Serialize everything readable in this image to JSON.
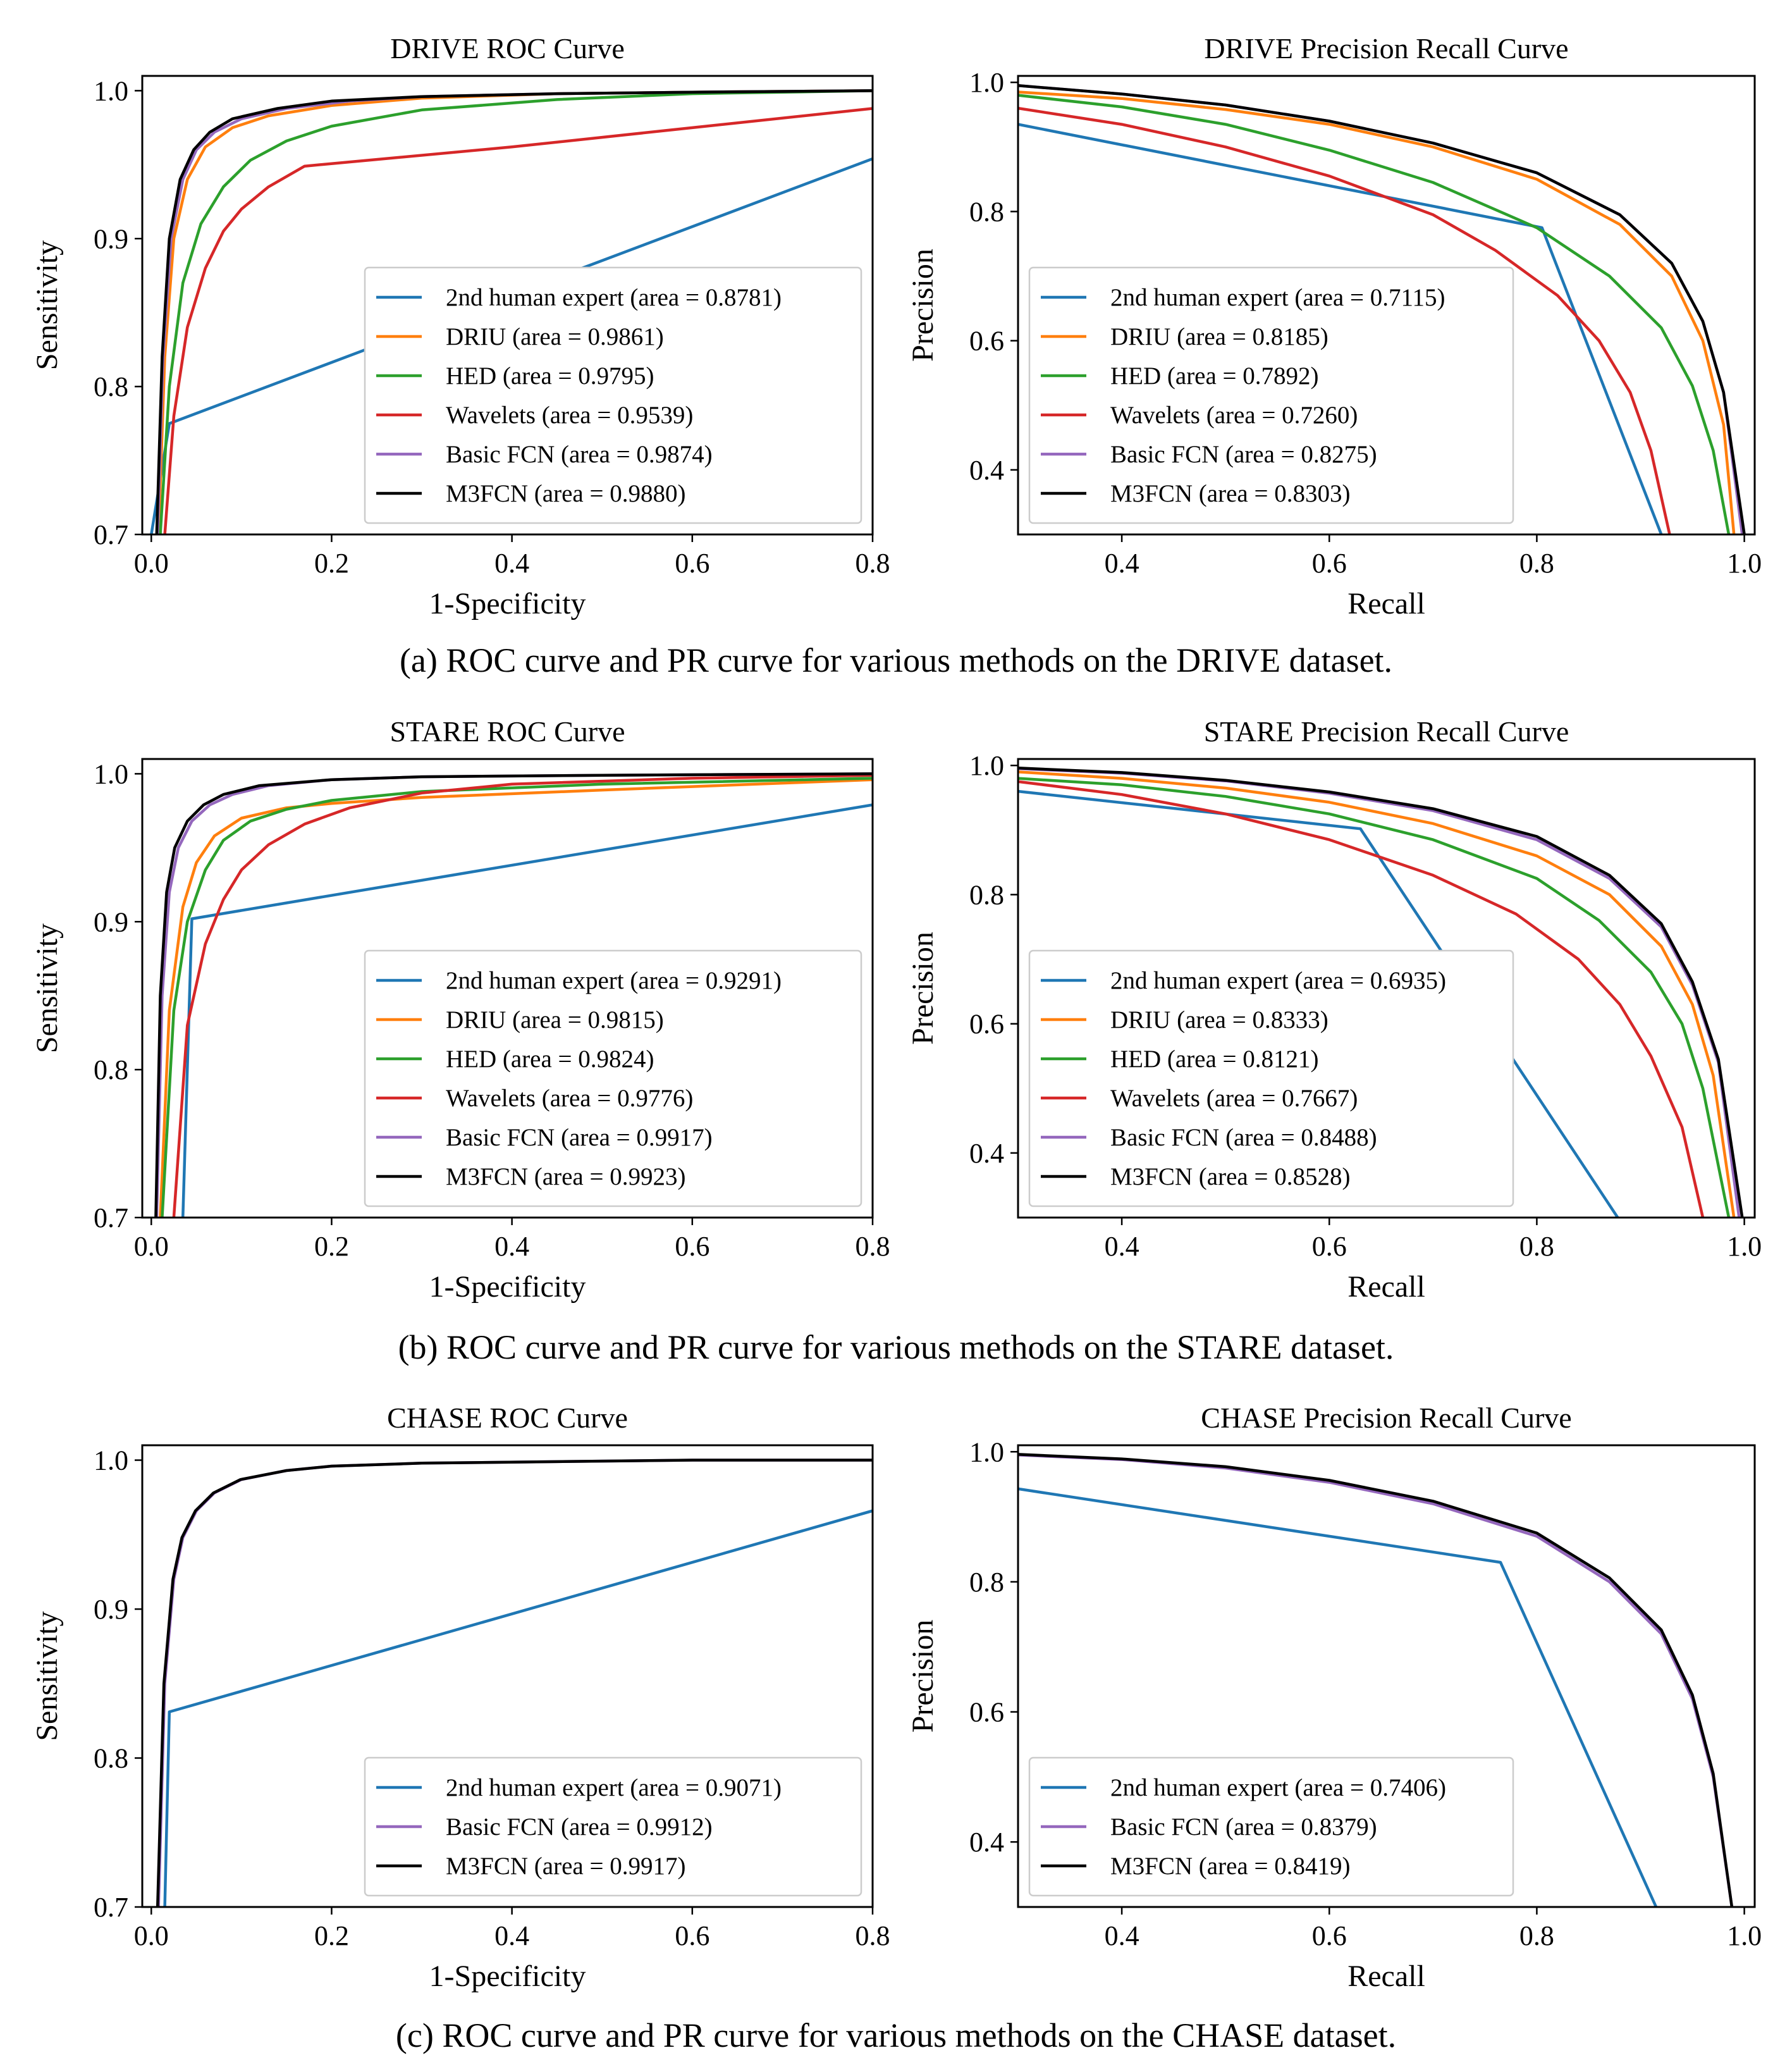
{
  "figure": {
    "captions": [
      "(a) ROC curve and PR curve for various methods on the DRIVE dataset.",
      "(b) ROC curve and PR curve for various methods on the STARE dataset.",
      "(c) ROC curve and PR curve for various methods on the CHASE dataset."
    ]
  },
  "colors": {
    "2nd human expert": "#1f77b4",
    "DRIU": "#ff7f0e",
    "HED": "#2ca02c",
    "Wavelets": "#d62728",
    "Basic FCN": "#9467bd",
    "M3FCN": "#000000"
  },
  "chart_data": [
    {
      "type": "line",
      "title": "DRIVE ROC Curve",
      "xlabel": "1-Specificity",
      "ylabel": "Sensitivity",
      "xlim": [
        -0.01,
        0.8
      ],
      "ylim": [
        0.7,
        1.01
      ],
      "xticks": [
        0.0,
        0.2,
        0.4,
        0.6,
        0.8
      ],
      "xtick_labels": [
        "0.0",
        "0.2",
        "0.4",
        "0.6",
        "0.8"
      ],
      "yticks": [
        0.7,
        0.8,
        0.9,
        1.0
      ],
      "ytick_labels": [
        "0.7",
        "0.8",
        "0.9",
        "1.0"
      ],
      "legend_position": "lower-right",
      "series": [
        {
          "name": "2nd human expert",
          "label": "2nd human expert (area = 0.8781)",
          "x": [
            0.0,
            0.02,
            0.8
          ],
          "y": [
            0.7,
            0.775,
            0.954
          ]
        },
        {
          "name": "DRIU",
          "label": "DRIU (area = 0.9861)",
          "x": [
            0.008,
            0.015,
            0.025,
            0.04,
            0.06,
            0.09,
            0.13,
            0.2,
            0.3,
            0.45,
            0.6,
            0.8
          ],
          "y": [
            0.7,
            0.82,
            0.9,
            0.94,
            0.962,
            0.975,
            0.983,
            0.99,
            0.995,
            0.998,
            0.999,
            1.0
          ]
        },
        {
          "name": "HED",
          "label": "HED (area = 0.9795)",
          "x": [
            0.01,
            0.02,
            0.035,
            0.055,
            0.08,
            0.11,
            0.15,
            0.2,
            0.3,
            0.45,
            0.6,
            0.8
          ],
          "y": [
            0.7,
            0.8,
            0.87,
            0.91,
            0.935,
            0.953,
            0.966,
            0.976,
            0.987,
            0.994,
            0.998,
            1.0
          ]
        },
        {
          "name": "Wavelets",
          "label": "Wavelets (area = 0.9539)",
          "x": [
            0.015,
            0.025,
            0.04,
            0.06,
            0.08,
            0.1,
            0.13,
            0.17,
            0.4,
            0.6,
            0.8
          ],
          "y": [
            0.7,
            0.78,
            0.84,
            0.88,
            0.905,
            0.92,
            0.935,
            0.949,
            0.962,
            0.975,
            0.988
          ]
        },
        {
          "name": "Basic FCN",
          "label": "Basic FCN (area = 0.9874)",
          "x": [
            0.007,
            0.013,
            0.022,
            0.035,
            0.05,
            0.07,
            0.1,
            0.15,
            0.22,
            0.3,
            0.45,
            0.6,
            0.8
          ],
          "y": [
            0.7,
            0.82,
            0.9,
            0.94,
            0.96,
            0.972,
            0.981,
            0.988,
            0.993,
            0.996,
            0.998,
            0.999,
            1.0
          ]
        },
        {
          "name": "M3FCN",
          "label": "M3FCN (area = 0.9880)",
          "x": [
            0.006,
            0.012,
            0.02,
            0.032,
            0.047,
            0.065,
            0.09,
            0.14,
            0.2,
            0.3,
            0.45,
            0.6,
            0.8
          ],
          "y": [
            0.7,
            0.82,
            0.9,
            0.94,
            0.96,
            0.972,
            0.981,
            0.988,
            0.993,
            0.996,
            0.998,
            0.999,
            1.0
          ]
        }
      ]
    },
    {
      "type": "line",
      "title": "DRIVE Precision Recall Curve",
      "xlabel": "Recall",
      "ylabel": "Precision",
      "xlim": [
        0.3,
        1.01
      ],
      "ylim": [
        0.3,
        1.01
      ],
      "xticks": [
        0.4,
        0.6,
        0.8,
        1.0
      ],
      "xtick_labels": [
        "0.4",
        "0.6",
        "0.8",
        "1.0"
      ],
      "yticks": [
        0.4,
        0.6,
        0.8,
        1.0
      ],
      "ytick_labels": [
        "0.4",
        "0.6",
        "0.8",
        "1.0"
      ],
      "legend_position": "lower-left",
      "series": [
        {
          "name": "2nd human expert",
          "label": "2nd human expert (area = 0.7115)",
          "x": [
            0.3,
            0.805,
            0.92
          ],
          "y": [
            0.935,
            0.775,
            0.3
          ]
        },
        {
          "name": "DRIU",
          "label": "DRIU (area = 0.8185)",
          "x": [
            0.3,
            0.4,
            0.5,
            0.6,
            0.7,
            0.8,
            0.88,
            0.93,
            0.96,
            0.98,
            0.99
          ],
          "y": [
            0.985,
            0.975,
            0.958,
            0.935,
            0.9,
            0.85,
            0.78,
            0.7,
            0.6,
            0.47,
            0.3
          ]
        },
        {
          "name": "HED",
          "label": "HED (area = 0.7892)",
          "x": [
            0.3,
            0.4,
            0.5,
            0.6,
            0.7,
            0.8,
            0.87,
            0.92,
            0.95,
            0.97,
            0.985
          ],
          "y": [
            0.98,
            0.962,
            0.935,
            0.895,
            0.845,
            0.775,
            0.7,
            0.62,
            0.53,
            0.43,
            0.3
          ]
        },
        {
          "name": "Wavelets",
          "label": "Wavelets (area = 0.7260)",
          "x": [
            0.3,
            0.4,
            0.5,
            0.6,
            0.7,
            0.76,
            0.82,
            0.86,
            0.89,
            0.91,
            0.928
          ],
          "y": [
            0.96,
            0.935,
            0.9,
            0.855,
            0.795,
            0.74,
            0.67,
            0.6,
            0.52,
            0.43,
            0.3
          ]
        },
        {
          "name": "Basic FCN",
          "label": "Basic FCN (area = 0.8275)",
          "x": [
            0.3,
            0.4,
            0.5,
            0.6,
            0.7,
            0.8,
            0.88,
            0.93,
            0.96,
            0.98,
            0.998
          ],
          "y": [
            0.995,
            0.982,
            0.965,
            0.94,
            0.906,
            0.86,
            0.795,
            0.72,
            0.63,
            0.52,
            0.3
          ]
        },
        {
          "name": "M3FCN",
          "label": "M3FCN (area = 0.8303)",
          "x": [
            0.3,
            0.4,
            0.5,
            0.6,
            0.7,
            0.8,
            0.88,
            0.93,
            0.96,
            0.98,
            1.0
          ],
          "y": [
            0.995,
            0.982,
            0.965,
            0.94,
            0.906,
            0.86,
            0.795,
            0.72,
            0.63,
            0.52,
            0.3
          ]
        }
      ]
    },
    {
      "type": "line",
      "title": "STARE ROC Curve",
      "xlabel": "1-Specificity",
      "ylabel": "Sensitivity",
      "xlim": [
        -0.01,
        0.8
      ],
      "ylim": [
        0.7,
        1.01
      ],
      "xticks": [
        0.0,
        0.2,
        0.4,
        0.6,
        0.8
      ],
      "xtick_labels": [
        "0.0",
        "0.2",
        "0.4",
        "0.6",
        "0.8"
      ],
      "yticks": [
        0.7,
        0.8,
        0.9,
        1.0
      ],
      "ytick_labels": [
        "0.7",
        "0.8",
        "0.9",
        "1.0"
      ],
      "legend_position": "lower-right",
      "series": [
        {
          "name": "2nd human expert",
          "label": "2nd human expert (area = 0.9291)",
          "x": [
            0.035,
            0.045,
            0.8
          ],
          "y": [
            0.7,
            0.902,
            0.979
          ]
        },
        {
          "name": "DRIU",
          "label": "DRIU (area = 0.9815)",
          "x": [
            0.01,
            0.02,
            0.035,
            0.05,
            0.07,
            0.1,
            0.15,
            0.2,
            0.3,
            0.5,
            0.8
          ],
          "y": [
            0.7,
            0.84,
            0.91,
            0.94,
            0.958,
            0.97,
            0.977,
            0.98,
            0.984,
            0.989,
            0.996
          ]
        },
        {
          "name": "HED",
          "label": "HED (area = 0.9824)",
          "x": [
            0.012,
            0.025,
            0.04,
            0.06,
            0.08,
            0.11,
            0.15,
            0.2,
            0.3,
            0.5,
            0.8
          ],
          "y": [
            0.7,
            0.84,
            0.9,
            0.935,
            0.955,
            0.968,
            0.976,
            0.982,
            0.988,
            0.993,
            0.997
          ]
        },
        {
          "name": "Wavelets",
          "label": "Wavelets (area = 0.9776)",
          "x": [
            0.025,
            0.04,
            0.06,
            0.08,
            0.1,
            0.13,
            0.17,
            0.22,
            0.3,
            0.4,
            0.6,
            0.8
          ],
          "y": [
            0.7,
            0.83,
            0.885,
            0.915,
            0.935,
            0.952,
            0.966,
            0.977,
            0.987,
            0.993,
            0.997,
            0.999
          ]
        },
        {
          "name": "Basic FCN",
          "label": "Basic FCN (area = 0.9917)",
          "x": [
            0.006,
            0.012,
            0.02,
            0.03,
            0.045,
            0.065,
            0.09,
            0.13,
            0.2,
            0.3,
            0.5,
            0.8
          ],
          "y": [
            0.7,
            0.85,
            0.92,
            0.95,
            0.968,
            0.979,
            0.986,
            0.992,
            0.996,
            0.998,
            0.999,
            1.0
          ]
        },
        {
          "name": "M3FCN",
          "label": "M3FCN (area = 0.9923)",
          "x": [
            0.005,
            0.01,
            0.017,
            0.026,
            0.04,
            0.058,
            0.08,
            0.12,
            0.2,
            0.3,
            0.5,
            0.8
          ],
          "y": [
            0.7,
            0.85,
            0.92,
            0.95,
            0.968,
            0.979,
            0.986,
            0.992,
            0.996,
            0.998,
            0.999,
            1.0
          ]
        }
      ]
    },
    {
      "type": "line",
      "title": "STARE Precision Recall Curve",
      "xlabel": "Recall",
      "ylabel": "Precision",
      "xlim": [
        0.3,
        1.01
      ],
      "ylim": [
        0.3,
        1.01
      ],
      "xticks": [
        0.4,
        0.6,
        0.8,
        1.0
      ],
      "xtick_labels": [
        "0.4",
        "0.6",
        "0.8",
        "1.0"
      ],
      "yticks": [
        0.4,
        0.6,
        0.8,
        1.0
      ],
      "ytick_labels": [
        "0.4",
        "0.6",
        "0.8",
        "1.0"
      ],
      "legend_position": "lower-left",
      "series": [
        {
          "name": "2nd human expert",
          "label": "2nd human expert (area = 0.6935)",
          "x": [
            0.3,
            0.63,
            0.878
          ],
          "y": [
            0.96,
            0.902,
            0.3
          ]
        },
        {
          "name": "DRIU",
          "label": "DRIU (area = 0.8333)",
          "x": [
            0.3,
            0.4,
            0.5,
            0.6,
            0.7,
            0.8,
            0.87,
            0.92,
            0.95,
            0.97,
            0.99
          ],
          "y": [
            0.99,
            0.98,
            0.965,
            0.943,
            0.91,
            0.86,
            0.8,
            0.72,
            0.63,
            0.52,
            0.3
          ]
        },
        {
          "name": "HED",
          "label": "HED (area = 0.8121)",
          "x": [
            0.3,
            0.4,
            0.5,
            0.6,
            0.7,
            0.8,
            0.86,
            0.91,
            0.94,
            0.96,
            0.985
          ],
          "y": [
            0.98,
            0.97,
            0.952,
            0.925,
            0.885,
            0.825,
            0.76,
            0.68,
            0.6,
            0.5,
            0.3
          ]
        },
        {
          "name": "Wavelets",
          "label": "Wavelets (area = 0.7667)",
          "x": [
            0.3,
            0.4,
            0.5,
            0.6,
            0.7,
            0.78,
            0.84,
            0.88,
            0.91,
            0.94,
            0.96
          ],
          "y": [
            0.975,
            0.955,
            0.925,
            0.885,
            0.83,
            0.77,
            0.7,
            0.63,
            0.55,
            0.44,
            0.3
          ]
        },
        {
          "name": "Basic FCN",
          "label": "Basic FCN (area = 0.8488)",
          "x": [
            0.3,
            0.4,
            0.5,
            0.6,
            0.7,
            0.8,
            0.87,
            0.92,
            0.95,
            0.975,
            0.995
          ],
          "y": [
            0.995,
            0.988,
            0.976,
            0.957,
            0.93,
            0.885,
            0.825,
            0.75,
            0.66,
            0.54,
            0.3
          ]
        },
        {
          "name": "M3FCN",
          "label": "M3FCN (area = 0.8528)",
          "x": [
            0.3,
            0.4,
            0.5,
            0.6,
            0.7,
            0.8,
            0.87,
            0.92,
            0.95,
            0.975,
            0.998
          ],
          "y": [
            0.996,
            0.989,
            0.977,
            0.959,
            0.933,
            0.89,
            0.83,
            0.755,
            0.665,
            0.545,
            0.3
          ]
        }
      ]
    },
    {
      "type": "line",
      "title": "CHASE ROC Curve",
      "xlabel": "1-Specificity",
      "ylabel": "Sensitivity",
      "xlim": [
        -0.01,
        0.8
      ],
      "ylim": [
        0.7,
        1.01
      ],
      "xticks": [
        0.0,
        0.2,
        0.4,
        0.6,
        0.8
      ],
      "xtick_labels": [
        "0.0",
        "0.2",
        "0.4",
        "0.6",
        "0.8"
      ],
      "yticks": [
        0.7,
        0.8,
        0.9,
        1.0
      ],
      "ytick_labels": [
        "0.7",
        "0.8",
        "0.9",
        "1.0"
      ],
      "legend_position": "lower-right",
      "series": [
        {
          "name": "2nd human expert",
          "label": "2nd human expert (area = 0.9071)",
          "x": [
            0.015,
            0.02,
            0.8
          ],
          "y": [
            0.7,
            0.831,
            0.966
          ]
        },
        {
          "name": "Basic FCN",
          "label": "Basic FCN (area = 0.9912)",
          "x": [
            0.008,
            0.015,
            0.025,
            0.035,
            0.05,
            0.07,
            0.1,
            0.15,
            0.2,
            0.3,
            0.45,
            0.6,
            0.8
          ],
          "y": [
            0.7,
            0.85,
            0.92,
            0.948,
            0.966,
            0.978,
            0.987,
            0.993,
            0.996,
            0.998,
            0.999,
            1.0,
            1.0
          ]
        },
        {
          "name": "M3FCN",
          "label": "M3FCN (area = 0.9917)",
          "x": [
            0.007,
            0.014,
            0.024,
            0.034,
            0.049,
            0.069,
            0.099,
            0.15,
            0.2,
            0.3,
            0.45,
            0.6,
            0.8
          ],
          "y": [
            0.7,
            0.85,
            0.92,
            0.948,
            0.966,
            0.978,
            0.987,
            0.993,
            0.996,
            0.998,
            0.999,
            1.0,
            1.0
          ]
        }
      ]
    },
    {
      "type": "line",
      "title": "CHASE Precision Recall Curve",
      "xlabel": "Recall",
      "ylabel": "Precision",
      "xlim": [
        0.3,
        1.01
      ],
      "ylim": [
        0.3,
        1.01
      ],
      "xticks": [
        0.4,
        0.6,
        0.8,
        1.0
      ],
      "xtick_labels": [
        "0.4",
        "0.6",
        "0.8",
        "1.0"
      ],
      "yticks": [
        0.4,
        0.6,
        0.8,
        1.0
      ],
      "ytick_labels": [
        "0.4",
        "0.6",
        "0.8",
        "1.0"
      ],
      "legend_position": "lower-left",
      "series": [
        {
          "name": "2nd human expert",
          "label": "2nd human expert (area = 0.7406)",
          "x": [
            0.3,
            0.765,
            0.915
          ],
          "y": [
            0.943,
            0.83,
            0.3
          ]
        },
        {
          "name": "Basic FCN",
          "label": "Basic FCN (area = 0.8379)",
          "x": [
            0.3,
            0.4,
            0.5,
            0.6,
            0.7,
            0.8,
            0.87,
            0.92,
            0.95,
            0.97,
            0.988
          ],
          "y": [
            0.995,
            0.988,
            0.975,
            0.953,
            0.92,
            0.87,
            0.8,
            0.72,
            0.62,
            0.5,
            0.3
          ]
        },
        {
          "name": "M3FCN",
          "label": "M3FCN (area = 0.8419)",
          "x": [
            0.3,
            0.4,
            0.5,
            0.6,
            0.7,
            0.8,
            0.87,
            0.92,
            0.95,
            0.97,
            0.988
          ],
          "y": [
            0.996,
            0.989,
            0.977,
            0.956,
            0.924,
            0.875,
            0.806,
            0.726,
            0.626,
            0.505,
            0.3
          ]
        }
      ]
    }
  ]
}
